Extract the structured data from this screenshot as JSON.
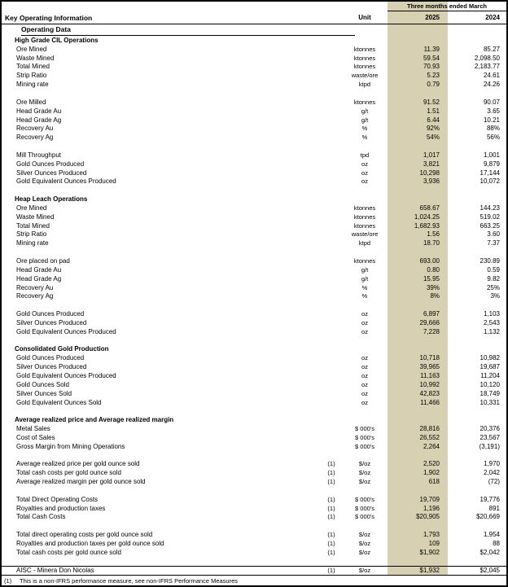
{
  "header": {
    "title": "Key Operating Information",
    "period": "Three months ended March",
    "unit_label": "Unit",
    "col_2025": "2025",
    "col_2024": "2024",
    "subtitle": "Operating Data"
  },
  "colors": {
    "highlight_column": "#d8d0b2",
    "border": "#000000"
  },
  "sections": [
    {
      "title": "High Grade CIL Operations",
      "rows": [
        {
          "label": "Ore Mined",
          "unit": "ktonnes",
          "y2025": "11.39",
          "y2024": "85.27"
        },
        {
          "label": "Waste Mined",
          "unit": "ktonnes",
          "y2025": "59.54",
          "y2024": "2,098.50"
        },
        {
          "label": "Total Mined",
          "unit": "ktonnes",
          "y2025": "70.93",
          "y2024": "2,183.77"
        },
        {
          "label": "Strip Ratio",
          "unit": "waste/ore",
          "y2025": "5.23",
          "y2024": "24.61"
        },
        {
          "label": "Mining rate",
          "unit": "ktpd",
          "y2025": "0.79",
          "y2024": "24.26"
        },
        {
          "type": "spacer"
        },
        {
          "label": "Ore Milled",
          "unit": "ktonnes",
          "y2025": "91.52",
          "y2024": "90.07"
        },
        {
          "label": "Head Grade Au",
          "unit": "g/t",
          "y2025": "1.51",
          "y2024": "3.65"
        },
        {
          "label": "Head Grade Ag",
          "unit": "g/t",
          "y2025": "6.44",
          "y2024": "10.21"
        },
        {
          "label": "Recovery Au",
          "unit": "%",
          "y2025": "92%",
          "y2024": "88%"
        },
        {
          "label": "Recovery Ag",
          "unit": "%",
          "y2025": "54%",
          "y2024": "56%"
        },
        {
          "type": "spacer"
        },
        {
          "label": "Mill Throughput",
          "unit": "tpd",
          "y2025": "1,017",
          "y2024": "1,001"
        },
        {
          "label": "Gold Ounces Produced",
          "unit": "oz",
          "y2025": "3,821",
          "y2024": "9,879"
        },
        {
          "label": "Silver Ounces Produced",
          "unit": "oz",
          "y2025": "10,298",
          "y2024": "17,144"
        },
        {
          "label": "Gold Equivalent Ounces Produced",
          "unit": "oz",
          "y2025": "3,936",
          "y2024": "10,072"
        },
        {
          "type": "spacer"
        }
      ]
    },
    {
      "title": "Heap Leach Operations",
      "rows": [
        {
          "label": "Ore Mined",
          "unit": "ktonnes",
          "y2025": "658.67",
          "y2024": "144.23"
        },
        {
          "label": "Waste Mined",
          "unit": "ktonnes",
          "y2025": "1,024.25",
          "y2024": "519.02"
        },
        {
          "label": "Total Mined",
          "unit": "ktonnes",
          "y2025": "1,682.93",
          "y2024": "663.25"
        },
        {
          "label": "Strip Ratio",
          "unit": "waste/ore",
          "y2025": "1.56",
          "y2024": "3.60"
        },
        {
          "label": "Mining rate",
          "unit": "ktpd",
          "y2025": "18.70",
          "y2024": "7.37"
        },
        {
          "type": "spacer"
        },
        {
          "label": "Ore placed on pad",
          "unit": "ktonnes",
          "y2025": "693.00",
          "y2024": "230.89"
        },
        {
          "label": "Head Grade Au",
          "unit": "g/t",
          "y2025": "0.80",
          "y2024": "0.59"
        },
        {
          "label": "Head Grade Ag",
          "unit": "g/t",
          "y2025": "15.95",
          "y2024": "9.82"
        },
        {
          "label": "Recovery Au",
          "unit": "%",
          "y2025": "39%",
          "y2024": "25%"
        },
        {
          "label": "Recovery Ag",
          "unit": "%",
          "y2025": "8%",
          "y2024": "3%"
        },
        {
          "type": "spacer"
        },
        {
          "label": "Gold Ounces Produced",
          "unit": "oz",
          "y2025": "6,897",
          "y2024": "1,103"
        },
        {
          "label": "Silver Ounces Produced",
          "unit": "oz",
          "y2025": "29,666",
          "y2024": "2,543"
        },
        {
          "label": "Gold Equivalent Ounces Produced",
          "unit": "oz",
          "y2025": "7,228",
          "y2024": "1,132"
        },
        {
          "type": "spacer"
        }
      ]
    },
    {
      "title": "Consolidated Gold Production",
      "rows": [
        {
          "label": "Gold Ounces Produced",
          "unit": "oz",
          "y2025": "10,718",
          "y2024": "10,982"
        },
        {
          "label": "Silver Ounces Produced",
          "unit": "oz",
          "y2025": "39,965",
          "y2024": "19,687"
        },
        {
          "label": "Gold Equivalent Ounces Produced",
          "unit": "oz",
          "y2025": "11,163",
          "y2024": "11,204"
        },
        {
          "label": "Gold Ounces Sold",
          "unit": "oz",
          "y2025": "10,992",
          "y2024": "10,120"
        },
        {
          "label": "Silver Ounces Sold",
          "unit": "oz",
          "y2025": "42,823",
          "y2024": "18,749"
        },
        {
          "label": "Gold Equivalent Ounces Sold",
          "unit": "oz",
          "y2025": "11,466",
          "y2024": "10,331"
        },
        {
          "type": "spacer"
        }
      ]
    },
    {
      "title": "Average realized price and Average realized margin",
      "rows": [
        {
          "label": "Metal Sales",
          "unit": "$ 000's",
          "y2025": "28,816",
          "y2024": "20,376"
        },
        {
          "label": "Cost of Sales",
          "unit": "$ 000's",
          "y2025": "26,552",
          "y2024": "23,567"
        },
        {
          "label": "Gross Margin from Mining Operations",
          "unit": "$ 000's",
          "y2025": "2,264",
          "y2024": "(3,191)"
        },
        {
          "type": "spacer"
        },
        {
          "label": "Average realized price per gold ounce sold",
          "note": "(1)",
          "unit": "$/oz",
          "y2025": "2,520",
          "y2024": "1,970"
        },
        {
          "label": "Total cash costs per gold ounce sold",
          "note": "(1)",
          "unit": "$/oz",
          "y2025": "1,902",
          "y2024": "2,042"
        },
        {
          "label": "Average realized margin per gold ounce sold",
          "note": "(1)",
          "unit": "$/oz",
          "y2025": "618",
          "y2024": "(72)"
        },
        {
          "type": "spacer"
        },
        {
          "label": "Total Direct Operating Costs",
          "note": "(1)",
          "unit": "$ 000's",
          "y2025": "19,709",
          "y2024": "19,776"
        },
        {
          "label": "Royalties and production taxes",
          "note": "(1)",
          "unit": "$ 000's",
          "y2025": "1,196",
          "y2024": "891"
        },
        {
          "label": "Total Cash Costs",
          "note": "(1)",
          "unit": "$ 000's",
          "y2025": "$20,905",
          "y2024": "$20,669"
        },
        {
          "type": "spacer"
        },
        {
          "label": "Total direct operating costs per gold ounce sold",
          "note": "(1)",
          "unit": "$/oz",
          "y2025": "1,793",
          "y2024": "1,954"
        },
        {
          "label": "Royalties and production taxes per gold ounce sold",
          "note": "(1)",
          "unit": "$/oz",
          "y2025": "109",
          "y2024": "88"
        },
        {
          "label": "Total cash costs per gold ounce sold",
          "note": "(1)",
          "unit": "$/oz",
          "y2025": "$1,902",
          "y2024": "$2,042"
        },
        {
          "type": "spacer"
        },
        {
          "label": "AISC - Minera Don Nicolas",
          "note": "(1)",
          "unit": "$/oz",
          "y2025": "$1,932",
          "y2024": "$2,045",
          "rule_above": true
        }
      ]
    }
  ],
  "footnote": {
    "marker": "(1)",
    "text": "This is a non-IFRS performance measure, see non-IFRS Performance Measures"
  }
}
